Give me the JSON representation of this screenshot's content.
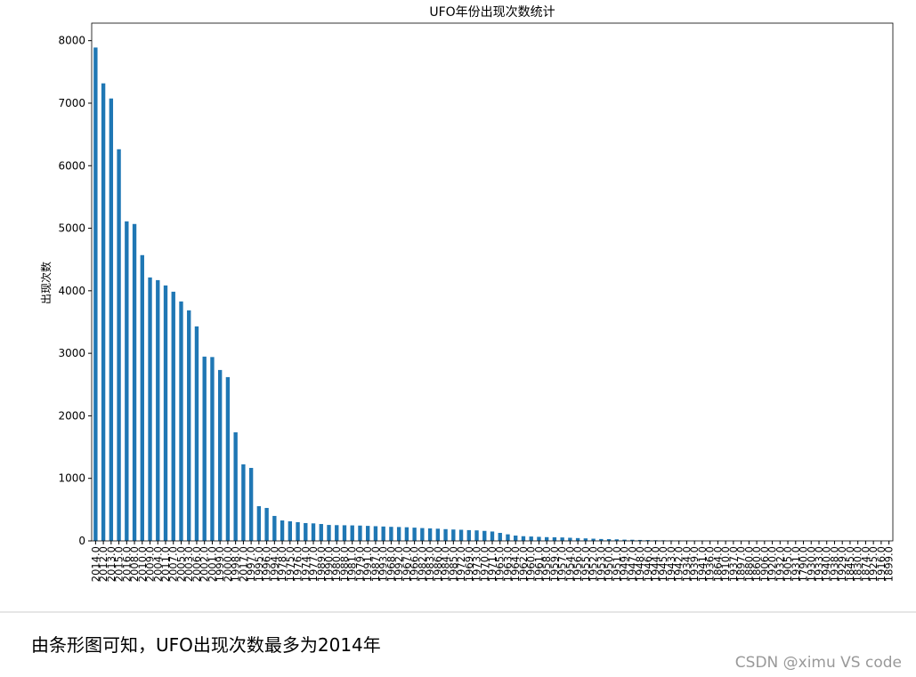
{
  "chart_data": {
    "type": "bar",
    "title": "UFO年份出现次数统计",
    "y_label": "出现次数",
    "color": "#1f77b4",
    "categories": [
      "2014.0",
      "2012.0",
      "2013.0",
      "2015.0",
      "2016.0",
      "2008.0",
      "2010.0",
      "2009.0",
      "2004.0",
      "2011.0",
      "2007.0",
      "2005.0",
      "2003.0",
      "2006.0",
      "2002.0",
      "2001.0",
      "1999.0",
      "2000.0",
      "1998.0",
      "2017.0",
      "1997.0",
      "1995.0",
      "1996.0",
      "1994.0",
      "1978.0",
      "1975.0",
      "1976.0",
      "1974.0",
      "1977.0",
      "1989.0",
      "1990.0",
      "1980.0",
      "1988.0",
      "1981.0",
      "1979.0",
      "1991.0",
      "1987.0",
      "1993.0",
      "1968.0",
      "1992.0",
      "1967.0",
      "1966.0",
      "1982.0",
      "1983.0",
      "1986.0",
      "1984.0",
      "1985.0",
      "1972.0",
      "1969.0",
      "1973.0",
      "1970.0",
      "1971.0",
      "1965.0",
      "1963.0",
      "1964.0",
      "1962.0",
      "1960.0",
      "1961.0",
      "1958.0",
      "1959.0",
      "1957.0",
      "1954.0",
      "1956.0",
      "1955.0",
      "1952.0",
      "1953.0",
      "1950.0",
      "1951.0",
      "1949.0",
      "1947.0",
      "1948.0",
      "1946.0",
      "1944.0",
      "1945.0",
      "1943.0",
      "1942.0",
      "1934.0",
      "1939.0",
      "1941.0",
      "1936.0",
      "1864.0",
      "1910.0",
      "1937.0",
      "1897.0",
      "1880.0",
      "1860.0",
      "1906.0",
      "1920.0",
      "1932.0",
      "1905.0",
      "1931.0",
      "1790.0",
      "1930.0",
      "1933.0",
      "1940.0",
      "1938.0",
      "1929.0",
      "1845.0",
      "1830.0",
      "1874.0",
      "1925.0",
      "1916.0",
      "1899.0"
    ],
    "values": [
      7890,
      7317,
      7075,
      6263,
      5110,
      5068,
      4570,
      4213,
      4170,
      4085,
      3985,
      3829,
      3687,
      3430,
      2947,
      2940,
      2733,
      2619,
      1737,
      1224,
      1167,
      555,
      527,
      399,
      327,
      313,
      299,
      285,
      280,
      270,
      255,
      252,
      250,
      248,
      245,
      240,
      235,
      230,
      225,
      222,
      218,
      212,
      205,
      200,
      195,
      188,
      182,
      178,
      172,
      168,
      160,
      150,
      128,
      105,
      85,
      75,
      70,
      65,
      60,
      58,
      55,
      50,
      45,
      40,
      35,
      30,
      28,
      25,
      20,
      18,
      15,
      13,
      10,
      9,
      8,
      7,
      6,
      5,
      5,
      4,
      4,
      3,
      3,
      3,
      2,
      2,
      2,
      2,
      2,
      2,
      1,
      1,
      1,
      1,
      1,
      1,
      1,
      1,
      1,
      1,
      1,
      1,
      1
    ],
    "ylim": [
      0,
      8280
    ],
    "yticks": [
      0,
      1000,
      2000,
      3000,
      4000,
      5000,
      6000,
      7000,
      8000
    ]
  },
  "caption": "由条形图可知，UFO出现次数最多为2014年",
  "watermark": "CSDN @ximu VS code"
}
